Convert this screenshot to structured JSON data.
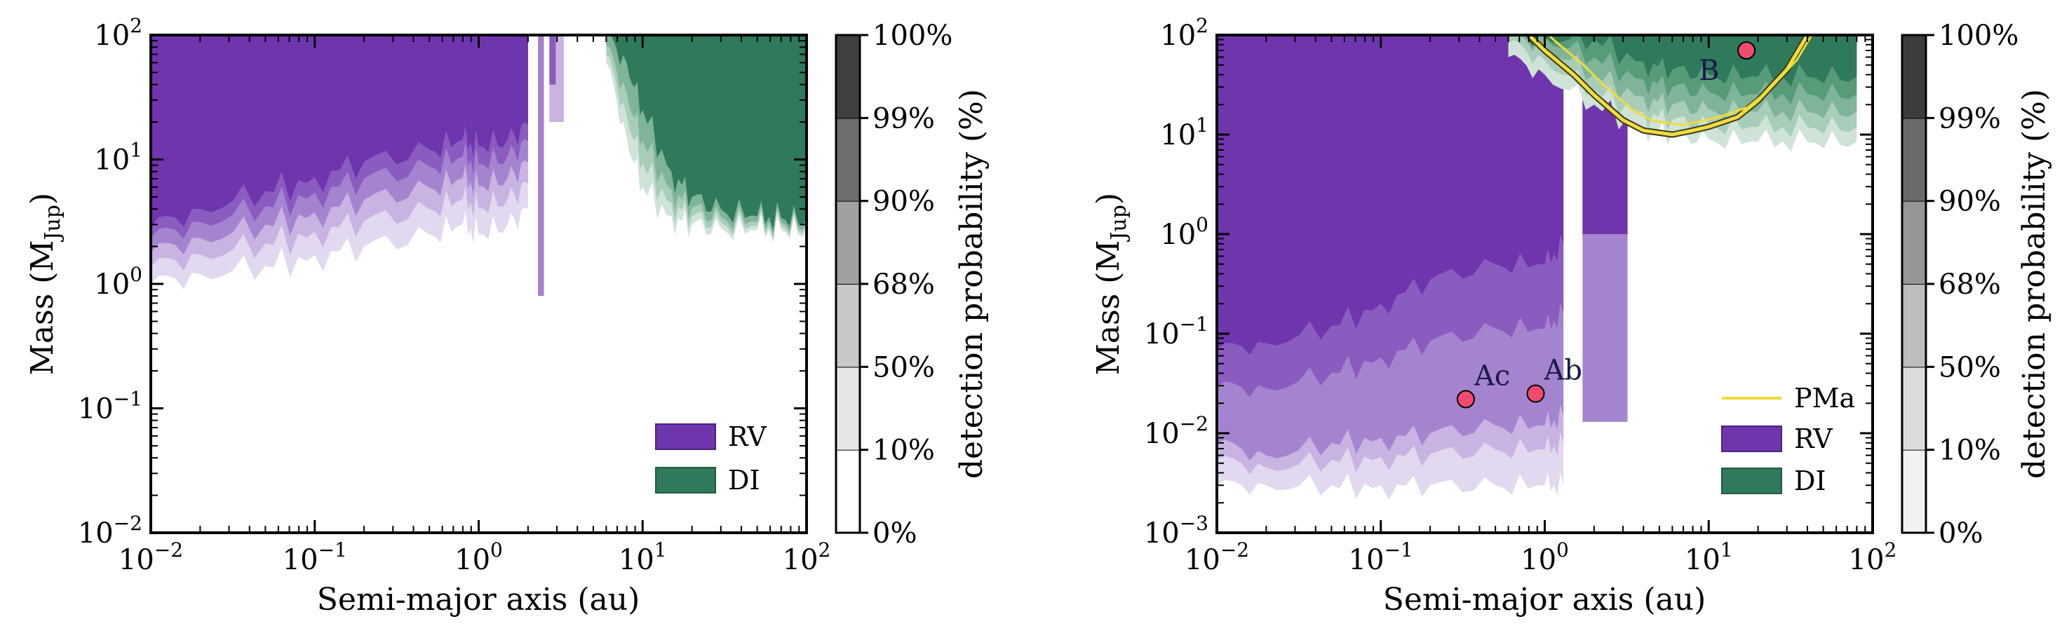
{
  "chart_data": [
    {
      "type": "area",
      "xlabel": "Semi-major axis (au)",
      "ylabel": "Mass (M",
      "ylabel_sub": "Jup",
      "ylabel_end": ")",
      "xscale": "log",
      "yscale": "log",
      "xlim": [
        0.01,
        100
      ],
      "ylim": [
        0.01,
        100
      ],
      "x_ticks": [
        {
          "base": "10",
          "exp": "−2"
        },
        {
          "base": "10",
          "exp": "−1"
        },
        {
          "base": "10",
          "exp": "0"
        },
        {
          "base": "10",
          "exp": "1"
        },
        {
          "base": "10",
          "exp": "2"
        }
      ],
      "y_ticks": [
        {
          "base": "10",
          "exp": "−2"
        },
        {
          "base": "10",
          "exp": "−1"
        },
        {
          "base": "10",
          "exp": "0"
        },
        {
          "base": "10",
          "exp": "1"
        },
        {
          "base": "10",
          "exp": "2"
        }
      ],
      "legend_position": "bottom-right",
      "legend": [
        {
          "label": "RV",
          "color": "#6f35ad"
        },
        {
          "label": "DI",
          "color": "#2f7a5a"
        }
      ],
      "rv_region": {
        "x": [
          0.01,
          0.02,
          0.05,
          0.1,
          0.2,
          0.5,
          0.8,
          1.0,
          1.5,
          2.0
        ],
        "lower_mass_10pct": [
          1.0,
          1.2,
          1.4,
          1.7,
          2.0,
          2.5,
          3.0,
          2.5,
          3.0,
          4.0
        ],
        "lower_mass_90pct": [
          1.8,
          2.5,
          3.5,
          4.5,
          6.0,
          7.5,
          9.0,
          8.0,
          9.0,
          12.0
        ],
        "upper_mass": 100
      },
      "rv_sliver": {
        "x_range": [
          2.3,
          2.5
        ],
        "lower_mass_10pct": 0.8
      },
      "rv_patch": {
        "x_range": [
          2.7,
          3.3
        ],
        "lower_mass_10pct": 20
      },
      "di_region": {
        "x": [
          6,
          8,
          10,
          15,
          20,
          30,
          50,
          70,
          100
        ],
        "lower_mass_10pct": [
          60,
          15,
          6,
          3.5,
          3.0,
          2.8,
          2.7,
          2.7,
          2.7
        ],
        "lower_mass_90pct": [
          100,
          60,
          25,
          8,
          5,
          4,
          3.5,
          3.4,
          3.3
        ],
        "upper_mass": 100
      }
    },
    {
      "type": "area",
      "xlabel": "Semi-major axis (au)",
      "ylabel": "Mass (M",
      "ylabel_sub": "Jup",
      "ylabel_end": ")",
      "xscale": "log",
      "yscale": "log",
      "xlim": [
        0.01,
        100
      ],
      "ylim": [
        0.001,
        100
      ],
      "x_ticks": [
        {
          "base": "10",
          "exp": "−2"
        },
        {
          "base": "10",
          "exp": "−1"
        },
        {
          "base": "10",
          "exp": "0"
        },
        {
          "base": "10",
          "exp": "1"
        },
        {
          "base": "10",
          "exp": "2"
        }
      ],
      "y_ticks": [
        {
          "base": "10",
          "exp": "−3"
        },
        {
          "base": "10",
          "exp": "−2"
        },
        {
          "base": "10",
          "exp": "−1"
        },
        {
          "base": "10",
          "exp": "0"
        },
        {
          "base": "10",
          "exp": "1"
        },
        {
          "base": "10",
          "exp": "2"
        }
      ],
      "legend_position": "bottom-right",
      "legend": [
        {
          "label": "PMa",
          "color": "#f0dc3c",
          "kind": "line"
        },
        {
          "label": "RV",
          "color": "#6f35ad"
        },
        {
          "label": "DI",
          "color": "#2f7a5a"
        }
      ],
      "rv_region": {
        "x": [
          0.01,
          0.02,
          0.05,
          0.1,
          0.2,
          0.5,
          1.0,
          1.3
        ],
        "lower_mass_10pct": [
          0.003,
          0.003,
          0.003,
          0.003,
          0.003,
          0.003,
          0.003,
          0.003
        ],
        "lower_mass_50pct": [
          0.008,
          0.006,
          0.008,
          0.009,
          0.01,
          0.012,
          0.012,
          0.015
        ],
        "lower_mass_90pct": [
          0.07,
          0.08,
          0.12,
          0.2,
          0.35,
          0.5,
          0.5,
          0.8
        ],
        "upper_mass": 100
      },
      "rv_patch": {
        "x_range": [
          1.7,
          3.2
        ],
        "lower_mass_10pct": 0.013,
        "lower_mass_90pct": 1.0
      },
      "di_region": {
        "x": [
          0.6,
          1.0,
          2.0,
          4.0,
          6.0,
          10,
          20,
          40,
          80
        ],
        "lower_mass_10pct": [
          60,
          40,
          20,
          12,
          10,
          9,
          8.5,
          8.5,
          8.5
        ],
        "upper_mass": 100
      },
      "pma_curve": {
        "x": [
          0.8,
          1.0,
          1.5,
          2.0,
          3.0,
          4.0,
          6.0,
          8.0,
          10,
          15,
          20,
          30,
          40
        ],
        "y": [
          100,
          70,
          40,
          25,
          14,
          11,
          10,
          11,
          12,
          15,
          22,
          45,
          100
        ]
      },
      "companions": [
        {
          "label": "Ac",
          "a": 0.33,
          "mass": 0.022
        },
        {
          "label": "Ab",
          "a": 0.88,
          "mass": 0.025
        },
        {
          "label": "B",
          "a": 17,
          "mass": 70
        }
      ]
    }
  ],
  "colorbars": [
    {
      "label": "detection probability (%)",
      "levels": [
        "0%",
        "10%",
        "50%",
        "68%",
        "90%",
        "99%",
        "100%"
      ],
      "band_colors": [
        "#ffffff",
        "#e6e6e6",
        "#c8c8c8",
        "#a0a0a0",
        "#6e6e6e",
        "#404040"
      ]
    },
    {
      "label": "detection probability (%)",
      "levels": [
        "0%",
        "10%",
        "50%",
        "68%",
        "90%",
        "99%",
        "100%"
      ],
      "band_colors": [
        "#f2f2f2",
        "#dcdcdc",
        "#bdbdbd",
        "#969696",
        "#6a6a6a",
        "#3c3c3c"
      ]
    }
  ],
  "colors": {
    "rv_levels": [
      "#e2d8ef",
      "#c8b3e2",
      "#a584cf",
      "#8a5cc0",
      "#6f35ad"
    ],
    "di_levels": [
      "#cfe3d8",
      "#a8cdb9",
      "#7fb498",
      "#579b79",
      "#2f7a5a"
    ],
    "pma": "#f0dc3c",
    "companion_fill": "#f04a6e"
  }
}
